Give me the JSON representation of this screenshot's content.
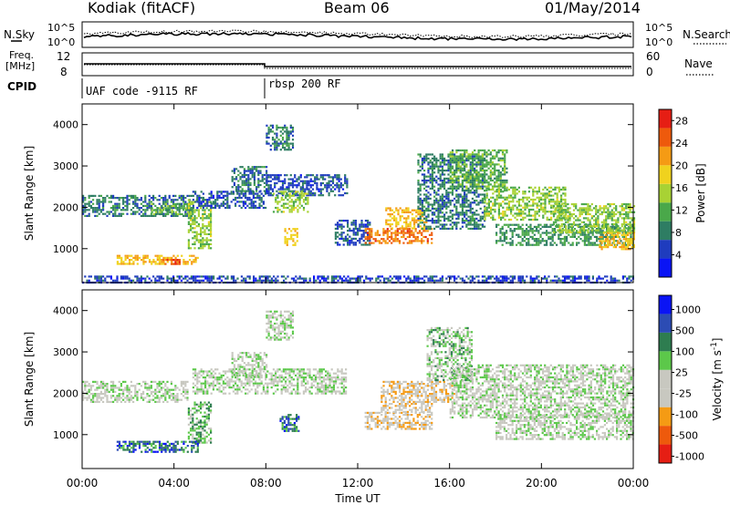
{
  "header": {
    "station": "Kodiak (fitACF)",
    "beam": "Beam 06",
    "date": "01/May/2014"
  },
  "top_panels": {
    "nsky_label": "N.Sky",
    "nsearch_label": "N.Search",
    "noise_ticks": [
      "10^5",
      "10^0"
    ],
    "freq_label_1": "Freq.",
    "freq_label_2": "[MHz]",
    "freq_ticks": [
      "12",
      "8"
    ],
    "nave_label": "Nave",
    "nave_ticks": [
      "60",
      "0"
    ],
    "cpid_label": "CPID",
    "cpid_segments": [
      {
        "label": "UAF code -9115 RF",
        "start_hour": 0
      },
      {
        "label": "rbsp 200 RF",
        "start_hour": 8
      }
    ]
  },
  "colors": {
    "power": [
      "#0a14f5",
      "#1f3cbe",
      "#2e7d63",
      "#4aa84a",
      "#a8d234",
      "#f0d21e",
      "#f59b14",
      "#ee5a0c",
      "#e61e14"
    ],
    "velocity": [
      "#e61e14",
      "#ee5a0c",
      "#f59b14",
      "#c8c8c0",
      "#c8c8c0",
      "#5cc84a",
      "#2e7d50",
      "#2c4cb4",
      "#0a14f5"
    ]
  },
  "chart_data": [
    {
      "type": "heatmap",
      "title": "",
      "xlabel": "",
      "ylabel": "Slant Range [km]",
      "xlim": [
        0,
        24
      ],
      "ylim": [
        180,
        4500
      ],
      "y_ticks": [
        1000,
        2000,
        3000,
        4000
      ],
      "colorbar": {
        "label": "Power [dB]",
        "ticks": [
          4,
          8,
          12,
          16,
          20,
          24,
          28
        ],
        "range": [
          0,
          30
        ]
      },
      "regions": [
        {
          "t0": 0.0,
          "t1": 4.8,
          "r0": 1800,
          "r1": 2300,
          "level": 8
        },
        {
          "t0": 3.0,
          "t1": 4.8,
          "r0": 1850,
          "r1": 2100,
          "level": 12
        },
        {
          "t0": 4.6,
          "t1": 5.6,
          "r0": 1000,
          "r1": 2200,
          "level": 14
        },
        {
          "t0": 1.5,
          "t1": 5.0,
          "r0": 650,
          "r1": 850,
          "level": 20
        },
        {
          "t0": 3.5,
          "t1": 4.2,
          "r0": 650,
          "r1": 750,
          "level": 26
        },
        {
          "t0": 4.8,
          "t1": 8.0,
          "r0": 2000,
          "r1": 2400,
          "level": 6
        },
        {
          "t0": 6.5,
          "t1": 8.0,
          "r0": 2400,
          "r1": 3000,
          "level": 8
        },
        {
          "t0": 8.0,
          "t1": 11.5,
          "r0": 2300,
          "r1": 2800,
          "level": 6
        },
        {
          "t0": 8.3,
          "t1": 9.8,
          "r0": 1900,
          "r1": 2400,
          "level": 14
        },
        {
          "t0": 8.8,
          "t1": 9.4,
          "r0": 1100,
          "r1": 1500,
          "level": 20
        },
        {
          "t0": 8.0,
          "t1": 9.2,
          "r0": 3400,
          "r1": 4000,
          "level": 8
        },
        {
          "t0": 11.0,
          "t1": 12.5,
          "r0": 1100,
          "r1": 1700,
          "level": 6
        },
        {
          "t0": 12.3,
          "t1": 15.2,
          "r0": 1150,
          "r1": 1500,
          "level": 24
        },
        {
          "t0": 13.2,
          "t1": 15.0,
          "r0": 1500,
          "r1": 2000,
          "level": 20
        },
        {
          "t0": 14.6,
          "t1": 17.5,
          "r0": 1500,
          "r1": 3300,
          "level": 8
        },
        {
          "t0": 16.0,
          "t1": 18.5,
          "r0": 2400,
          "r1": 3400,
          "level": 12
        },
        {
          "t0": 17.5,
          "t1": 21.0,
          "r0": 1700,
          "r1": 2500,
          "level": 14
        },
        {
          "t0": 18.0,
          "t1": 24.0,
          "r0": 1100,
          "r1": 1600,
          "level": 10
        },
        {
          "t0": 20.5,
          "t1": 24.0,
          "r0": 1400,
          "r1": 2100,
          "level": 14
        },
        {
          "t0": 22.5,
          "t1": 24.0,
          "r0": 1000,
          "r1": 1400,
          "level": 20
        },
        {
          "t0": 0.0,
          "t1": 24.0,
          "r0": 200,
          "r1": 350,
          "level": 5
        }
      ]
    },
    {
      "type": "heatmap",
      "title": "",
      "xlabel": "Time UT",
      "ylabel": "Slant Range [km]",
      "xlim": [
        0,
        24
      ],
      "ylim": [
        180,
        4500
      ],
      "x_ticks": [
        "00:00",
        "04:00",
        "08:00",
        "12:00",
        "16:00",
        "20:00",
        "00:00"
      ],
      "y_ticks": [
        1000,
        2000,
        3000,
        4000
      ],
      "colorbar": {
        "label": "Velocity [m s^-1]",
        "ticks": [
          1000,
          500,
          100,
          25,
          -25,
          -100,
          -500,
          -1000
        ]
      },
      "regions": [
        {
          "t0": 0.0,
          "t1": 4.6,
          "r0": 1800,
          "r1": 2300,
          "level": 0
        },
        {
          "t0": 4.6,
          "t1": 5.6,
          "r0": 800,
          "r1": 1800,
          "level": 2
        },
        {
          "t0": 1.5,
          "t1": 5.0,
          "r0": 600,
          "r1": 850,
          "level": 5
        },
        {
          "t0": 4.8,
          "t1": 11.5,
          "r0": 2000,
          "r1": 2600,
          "level": 0
        },
        {
          "t0": 6.5,
          "t1": 8.0,
          "r0": 2400,
          "r1": 3000,
          "level": 0
        },
        {
          "t0": 8.6,
          "t1": 9.4,
          "r0": 1100,
          "r1": 1500,
          "level": 5
        },
        {
          "t0": 8.0,
          "t1": 9.2,
          "r0": 3300,
          "r1": 4000,
          "level": 0
        },
        {
          "t0": 12.3,
          "t1": 15.2,
          "r0": 1150,
          "r1": 1550,
          "level": -2
        },
        {
          "t0": 13.0,
          "t1": 15.2,
          "r0": 1550,
          "r1": 2300,
          "level": -2
        },
        {
          "t0": 15.2,
          "t1": 16.2,
          "r0": 1800,
          "r1": 2300,
          "level": -2
        },
        {
          "t0": 15.0,
          "t1": 17.0,
          "r0": 2300,
          "r1": 3600,
          "level": 1
        },
        {
          "t0": 16.0,
          "t1": 24.0,
          "r0": 1400,
          "r1": 2700,
          "level": 0
        },
        {
          "t0": 18.0,
          "t1": 24.0,
          "r0": 900,
          "r1": 1500,
          "level": 0
        }
      ]
    }
  ]
}
